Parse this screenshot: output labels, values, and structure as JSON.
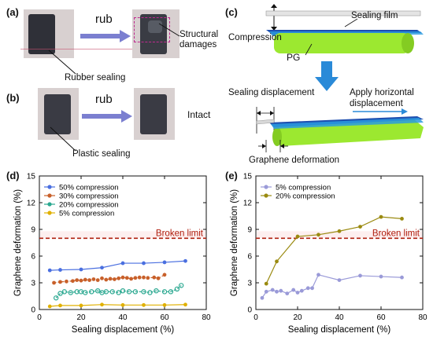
{
  "panels": {
    "a": {
      "label": "(a)",
      "action": "rub",
      "left_caption": "Rubber sealing",
      "right_caption": "Structural damages"
    },
    "b": {
      "label": "(b)",
      "action": "rub",
      "left_caption": "Plastic sealing",
      "right_caption": "Intact"
    },
    "c": {
      "label": "(c)",
      "sealing_film": "Sealing film",
      "compression": "Compression",
      "pg": "PG",
      "sealing_displacement": "Sealing displacement",
      "apply_horizontal": "Apply horizontal",
      "displacement": "displacement",
      "graphene_deformation": "Graphene deformation"
    },
    "d": {
      "label": "(d)"
    },
    "e": {
      "label": "(e)"
    }
  },
  "colors": {
    "s50": "#4a6fe0",
    "s30": "#c8602a",
    "s20": "#2aa890",
    "s5d": "#e0b000",
    "s5e": "#9a9ad8",
    "s20e": "#9a8a10",
    "broken": "#b02010",
    "arrow_blue": "#2a8ad8",
    "pg_green": "#9ce830"
  },
  "chart_data": [
    {
      "type": "line",
      "panel": "(d)",
      "xlabel": "Sealing displacement (%)",
      "ylabel": "Graphene deformation (%)",
      "xlim": [
        0,
        80
      ],
      "ylim": [
        0,
        15
      ],
      "xticks": [
        "0",
        "20",
        "40",
        "60",
        "80"
      ],
      "yticks": [
        "0",
        "3",
        "6",
        "9",
        "12",
        "15"
      ],
      "grid": false,
      "legend": "top-left",
      "reference_line": {
        "y": 8,
        "label": "Broken limit"
      },
      "series": [
        {
          "name": "50% compression",
          "color_key": "s50",
          "style": "solid",
          "x": [
            5,
            10,
            20,
            30,
            40,
            50,
            60,
            70
          ],
          "y": [
            4.4,
            4.45,
            4.5,
            4.7,
            5.2,
            5.2,
            5.3,
            5.45
          ]
        },
        {
          "name": "30% compression",
          "color_key": "s30",
          "style": "dashed",
          "x": [
            7,
            10,
            13,
            16,
            18,
            20,
            22,
            24,
            26,
            28,
            30,
            32,
            34,
            36,
            38,
            40,
            42,
            44,
            46,
            48,
            50,
            52,
            55,
            57,
            60
          ],
          "y": [
            3.0,
            3.1,
            3.15,
            3.2,
            3.3,
            3.25,
            3.35,
            3.3,
            3.4,
            3.3,
            3.5,
            3.35,
            3.45,
            3.4,
            3.5,
            3.6,
            3.55,
            3.45,
            3.55,
            3.6,
            3.6,
            3.55,
            3.6,
            3.5,
            3.9
          ]
        },
        {
          "name": "20% compression",
          "color_key": "s20",
          "style": "dashed",
          "x": [
            8,
            10,
            12,
            15,
            18,
            20,
            22,
            25,
            28,
            30,
            32,
            35,
            38,
            40,
            43,
            46,
            50,
            53,
            56,
            60,
            63,
            66,
            68
          ],
          "y": [
            1.3,
            1.8,
            2.0,
            1.9,
            2.0,
            2.0,
            1.9,
            2.0,
            2.1,
            1.9,
            2.0,
            2.0,
            1.9,
            2.1,
            2.0,
            2.0,
            2.0,
            1.9,
            2.1,
            2.0,
            2.0,
            2.3,
            2.7
          ]
        },
        {
          "name": "5% compression",
          "color_key": "s5d",
          "style": "solid",
          "x": [
            5,
            10,
            20,
            30,
            40,
            50,
            60,
            70
          ],
          "y": [
            0.35,
            0.45,
            0.45,
            0.55,
            0.5,
            0.5,
            0.5,
            0.55
          ]
        }
      ]
    },
    {
      "type": "line",
      "panel": "(e)",
      "xlabel": "Sealing displacement (%)",
      "ylabel": "Graphene deformation (%)",
      "xlim": [
        0,
        80
      ],
      "ylim": [
        0,
        15
      ],
      "xticks": [
        "0",
        "20",
        "40",
        "60",
        "80"
      ],
      "yticks": [
        "0",
        "3",
        "6",
        "9",
        "12",
        "15"
      ],
      "grid": false,
      "legend": "top-left",
      "reference_line": {
        "y": 8,
        "label": "Broken limit"
      },
      "series": [
        {
          "name": "5% compression",
          "color_key": "s5e",
          "style": "solid",
          "x": [
            3,
            5,
            8,
            10,
            12,
            15,
            18,
            20,
            22,
            25,
            27,
            30,
            40,
            50,
            60,
            70
          ],
          "y": [
            1.3,
            2.0,
            2.2,
            2.0,
            2.1,
            1.8,
            2.2,
            1.9,
            2.1,
            2.4,
            2.4,
            3.9,
            3.3,
            3.8,
            3.7,
            3.6
          ]
        },
        {
          "name": "20% compression",
          "color_key": "s20e",
          "style": "solid",
          "x": [
            5,
            10,
            20,
            30,
            40,
            50,
            60,
            70
          ],
          "y": [
            2.9,
            5.4,
            8.2,
            8.4,
            8.8,
            9.3,
            10.4,
            10.2
          ]
        }
      ]
    }
  ]
}
